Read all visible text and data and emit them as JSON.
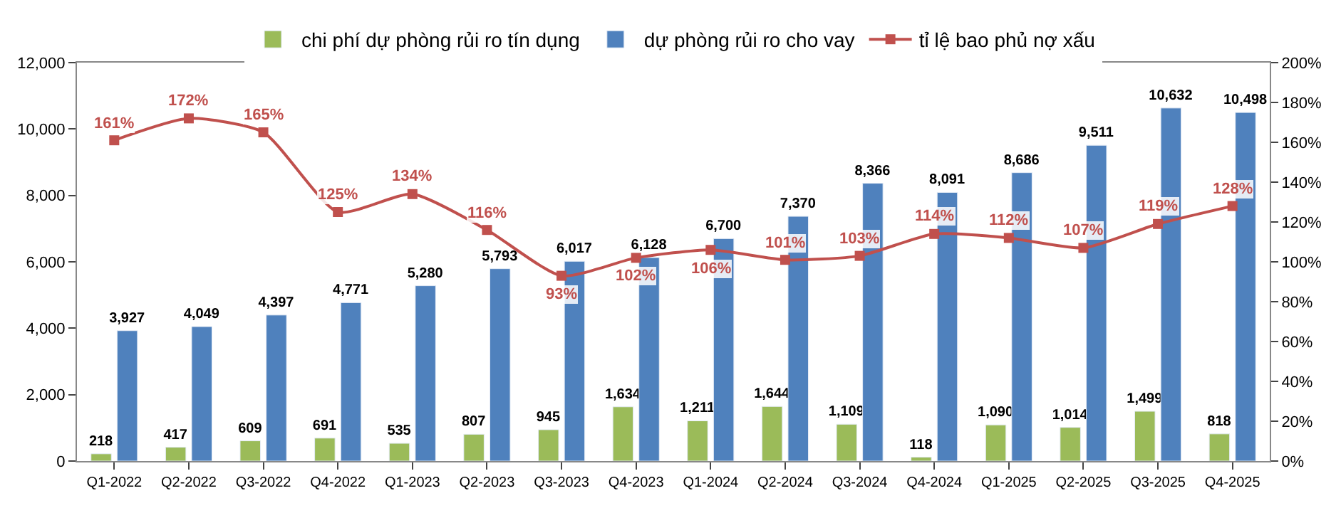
{
  "chart_data": {
    "type": "bar",
    "categories": [
      "Q1-2022",
      "Q2-2022",
      "Q3-2022",
      "Q4-2022",
      "Q1-2023",
      "Q2-2023",
      "Q3-2023",
      "Q4-2023",
      "Q1-2024",
      "Q2-2024",
      "Q3-2024",
      "Q4-2024",
      "Q1-2025",
      "Q2-2025",
      "Q3-2025",
      "Q4-2025"
    ],
    "series": [
      {
        "name": "chi phí dự phòng rủi ro tín dụng",
        "color": "#9bbb59",
        "values": [
          218,
          417,
          609,
          691,
          535,
          807,
          945,
          1634,
          1211,
          1644,
          1109,
          118,
          1090,
          1014,
          1499,
          818
        ],
        "value_labels": [
          "218",
          "417",
          "609",
          "691",
          "535",
          "807",
          "945",
          "1,634",
          "1,211",
          "1,644",
          "1,109",
          "118",
          "1,090",
          "1,014",
          "1,499",
          "818"
        ]
      },
      {
        "name": "dự phòng rủi ro cho vay",
        "color": "#4f81bd",
        "values": [
          3927,
          4049,
          4397,
          4771,
          5280,
          5793,
          6017,
          6128,
          6700,
          7370,
          8366,
          8091,
          8686,
          9511,
          10632,
          10498
        ],
        "value_labels": [
          "3,927",
          "4,049",
          "4,397",
          "4,771",
          "5,280",
          "5,793",
          "6,017",
          "6,128",
          "6,700",
          "7,370",
          "8,366",
          "8,091",
          "8,686",
          "9,511",
          "10,632",
          "10,498"
        ]
      },
      {
        "name": "tỉ lệ bao phủ nợ xấu",
        "type": "line",
        "axis": "y2",
        "marker": "square",
        "color": "#c0504d",
        "values": [
          161,
          172,
          165,
          125,
          134,
          116,
          93,
          102,
          106,
          101,
          103,
          114,
          112,
          107,
          119,
          128
        ],
        "value_labels": [
          "161%",
          "172%",
          "165%",
          "125%",
          "134%",
          "116%",
          "93%",
          "102%",
          "106%",
          "101%",
          "103%",
          "114%",
          "112%",
          "107%",
          "119%",
          "128%"
        ]
      }
    ],
    "ylim": [
      0,
      12000
    ],
    "yticks": [
      0,
      {
        "value": 2000,
        "label": "2,000"
      },
      {
        "value": 4000,
        "label": "4,000"
      },
      {
        "value": 6000,
        "label": "6,000"
      },
      {
        "value": 8000,
        "label": "8,000"
      },
      {
        "value": 10000,
        "label": "10,000"
      },
      {
        "value": 12000,
        "label": "12,000"
      }
    ],
    "y2lim": [
      0,
      200
    ],
    "y2ticks": [
      {
        "value": 0,
        "label": "0%"
      },
      {
        "value": 20,
        "label": "20%"
      },
      {
        "value": 40,
        "label": "40%"
      },
      {
        "value": 60,
        "label": "60%"
      },
      {
        "value": 80,
        "label": "80%"
      },
      {
        "value": 100,
        "label": "100%"
      },
      {
        "value": 120,
        "label": "120%"
      },
      {
        "value": 140,
        "label": "140%"
      },
      {
        "value": 160,
        "label": "160%"
      },
      {
        "value": 180,
        "label": "180%"
      },
      {
        "value": 200,
        "label": "200%"
      }
    ],
    "grid": false,
    "legend": "top"
  }
}
